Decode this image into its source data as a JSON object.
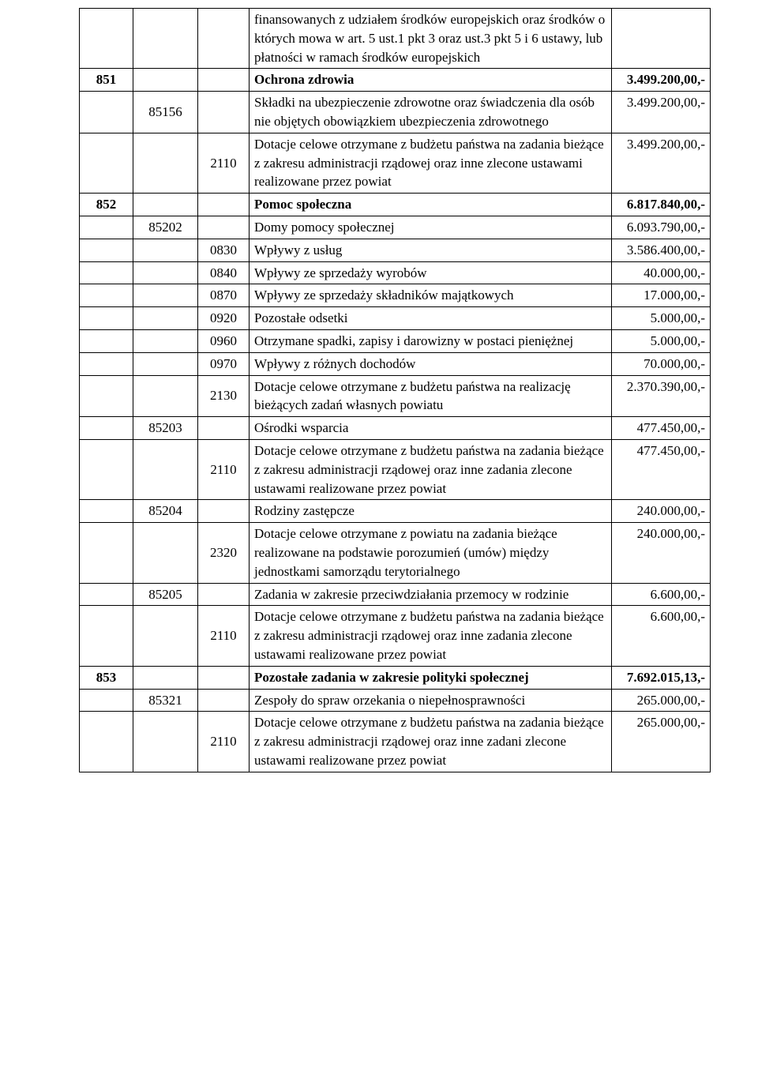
{
  "table": {
    "rows": [
      {
        "a": "",
        "b": "",
        "c": "",
        "d": "finansowanych z udziałem środków europejskich oraz środków o których mowa w art. 5 ust.1 pkt 3 oraz ust.3 pkt 5 i 6 ustawy, lub płatności w ramach środków europejskich",
        "e": "",
        "bold": false
      },
      {
        "a": "851",
        "b": "",
        "c": "",
        "d": "Ochrona zdrowia",
        "e": "3.499.200,00,-",
        "bold": true
      },
      {
        "a": "",
        "b": "85156",
        "c": "",
        "d": "Składki na ubezpieczenie zdrowotne oraz świadczenia dla osób nie objętych obowiązkiem ubezpieczenia zdrowotnego",
        "e": "3.499.200,00,-",
        "bold": false
      },
      {
        "a": "",
        "b": "",
        "c": "2110",
        "d": "Dotacje celowe otrzymane z budżetu państwa na zadania bieżące z zakresu administracji rządowej oraz inne zlecone ustawami realizowane przez powiat",
        "e": "3.499.200,00,-",
        "bold": false
      },
      {
        "a": "852",
        "b": "",
        "c": "",
        "d": "Pomoc społeczna",
        "e": "6.817.840,00,-",
        "bold": true
      },
      {
        "a": "",
        "b": "85202",
        "c": "",
        "d": "Domy pomocy społecznej",
        "e": "6.093.790,00,-",
        "bold": false
      },
      {
        "a": "",
        "b": "",
        "c": "0830",
        "d": "Wpływy z usług",
        "e": "3.586.400,00,-",
        "bold": false
      },
      {
        "a": "",
        "b": "",
        "c": "0840",
        "d": "Wpływy ze sprzedaży wyrobów",
        "e": "40.000,00,-",
        "bold": false
      },
      {
        "a": "",
        "b": "",
        "c": "0870",
        "d": "Wpływy ze sprzedaży składników majątkowych",
        "e": "17.000,00,-",
        "bold": false
      },
      {
        "a": "",
        "b": "",
        "c": "0920",
        "d": "Pozostałe odsetki",
        "e": "5.000,00,-",
        "bold": false
      },
      {
        "a": "",
        "b": "",
        "c": "0960",
        "d": "Otrzymane spadki, zapisy i darowizny w postaci pieniężnej",
        "e": "5.000,00,-",
        "bold": false
      },
      {
        "a": "",
        "b": "",
        "c": "0970",
        "d": "Wpływy z różnych dochodów",
        "e": "70.000,00,-",
        "bold": false
      },
      {
        "a": "",
        "b": "",
        "c": "2130",
        "d": "Dotacje celowe otrzymane z budżetu państwa na realizację bieżących zadań własnych powiatu",
        "e": "2.370.390,00,-",
        "bold": false
      },
      {
        "a": "",
        "b": "85203",
        "c": "",
        "d": "Ośrodki wsparcia",
        "e": "477.450,00,-",
        "bold": false
      },
      {
        "a": "",
        "b": "",
        "c": "2110",
        "d": "Dotacje celowe otrzymane z budżetu państwa na zadania bieżące z zakresu administracji rządowej oraz inne zadania zlecone ustawami realizowane przez powiat",
        "e": "477.450,00,-",
        "bold": false
      },
      {
        "a": "",
        "b": "85204",
        "c": "",
        "d": "Rodziny zastępcze",
        "e": "240.000,00,-",
        "bold": false
      },
      {
        "a": "",
        "b": "",
        "c": "2320",
        "d": "Dotacje celowe otrzymane z powiatu na zadania bieżące realizowane na podstawie porozumień (umów) między jednostkami samorządu terytorialnego",
        "e": "240.000,00,-",
        "bold": false
      },
      {
        "a": "",
        "b": "85205",
        "c": "",
        "d": "Zadania w zakresie przeciwdziałania przemocy w rodzinie",
        "e": "6.600,00,-",
        "bold": false
      },
      {
        "a": "",
        "b": "",
        "c": "2110",
        "d": "Dotacje celowe otrzymane z budżetu państwa na zadania bieżące z zakresu administracji rządowej oraz inne zadania zlecone ustawami realizowane przez powiat",
        "e": "6.600,00,-",
        "bold": false
      },
      {
        "a": "853",
        "b": "",
        "c": "",
        "d": "Pozostałe zadania w zakresie polityki społecznej",
        "e": "7.692.015,13,-",
        "bold": true
      },
      {
        "a": "",
        "b": "85321",
        "c": "",
        "d": "Zespoły do spraw orzekania o niepełnosprawności",
        "e": "265.000,00,-",
        "bold": false
      },
      {
        "a": "",
        "b": "",
        "c": "2110",
        "d": "Dotacje celowe otrzymane z budżetu państwa na zadania bieżące z zakresu administracji rządowej oraz inne zadani zlecone ustawami realizowane przez powiat",
        "e": "265.000,00,-",
        "bold": false
      }
    ]
  }
}
